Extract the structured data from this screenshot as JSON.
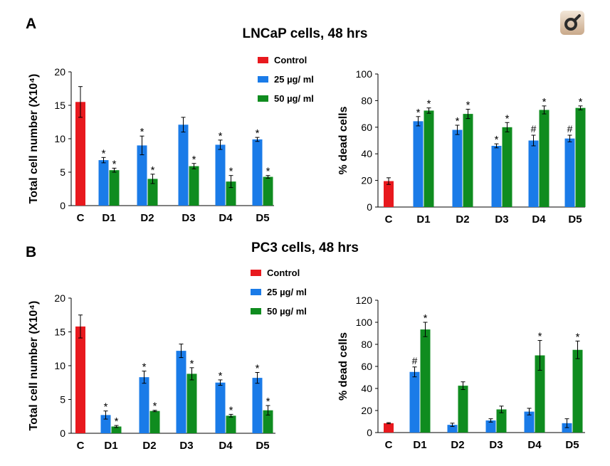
{
  "panel_a": {
    "letter": "A",
    "title": "LNCaP cells, 48 hrs"
  },
  "panel_b": {
    "letter": "B",
    "title": "PC3 cells, 48 hrs"
  },
  "legend": {
    "control": {
      "label": "Control",
      "color": "#e8191e"
    },
    "low": {
      "label": "25 µg/ ml",
      "color": "#1a7be8"
    },
    "high": {
      "label": "50 µg/ ml",
      "color": "#0f8c1f"
    }
  },
  "logo_icon": "journal-logo-icon",
  "chart_data": [
    {
      "id": "A-left",
      "type": "bar",
      "ylabel": "Total cell number (X10⁴)",
      "ylim": [
        0,
        20
      ],
      "yticks": [
        0,
        5,
        10,
        15,
        20
      ],
      "categories": [
        "C",
        "D1",
        "D2",
        "D3",
        "D4",
        "D5"
      ],
      "series": [
        {
          "name": "Control",
          "color": "#e8191e",
          "values": [
            15.5,
            null,
            null,
            null,
            null,
            null
          ],
          "errors": [
            2.3,
            null,
            null,
            null,
            null,
            null
          ],
          "marks": [
            "",
            "",
            "",
            "",
            "",
            ""
          ]
        },
        {
          "name": "25 µg/ ml",
          "color": "#1a7be8",
          "values": [
            null,
            6.8,
            9.0,
            12.1,
            9.1,
            9.9
          ],
          "errors": [
            null,
            0.4,
            1.4,
            1.1,
            0.7,
            0.3
          ],
          "marks": [
            "",
            "*",
            "*",
            "",
            "*",
            "*"
          ]
        },
        {
          "name": "50 µg/ ml",
          "color": "#0f8c1f",
          "values": [
            null,
            5.3,
            4.0,
            5.9,
            3.6,
            4.3
          ],
          "errors": [
            null,
            0.3,
            0.7,
            0.4,
            0.9,
            0.2
          ],
          "marks": [
            "",
            "*",
            "*",
            "*",
            "*",
            "*"
          ]
        }
      ]
    },
    {
      "id": "A-right",
      "type": "bar",
      "ylabel": "% dead cells",
      "ylim": [
        0,
        100
      ],
      "yticks": [
        0,
        20,
        40,
        60,
        80,
        100
      ],
      "categories": [
        "C",
        "D1",
        "D2",
        "D3",
        "D4",
        "D5"
      ],
      "series": [
        {
          "name": "Control",
          "color": "#e8191e",
          "values": [
            19.5,
            null,
            null,
            null,
            null,
            null
          ],
          "errors": [
            2.5,
            null,
            null,
            null,
            null,
            null
          ],
          "marks": [
            "",
            "",
            "",
            "",
            "",
            ""
          ]
        },
        {
          "name": "25 µg/ ml",
          "color": "#1a7be8",
          "values": [
            null,
            64.5,
            58.0,
            46.0,
            50.0,
            51.5
          ],
          "errors": [
            null,
            3.5,
            3.5,
            1.5,
            4.0,
            2.5
          ],
          "marks": [
            "",
            "*",
            "*",
            "*",
            "#",
            "#"
          ]
        },
        {
          "name": "50 µg/ ml",
          "color": "#0f8c1f",
          "values": [
            null,
            72.5,
            70.0,
            60.0,
            73.0,
            74.5
          ],
          "errors": [
            null,
            2.0,
            3.5,
            3.5,
            3.0,
            1.5
          ],
          "marks": [
            "",
            "*",
            "*",
            "*",
            "*",
            "*"
          ]
        }
      ]
    },
    {
      "id": "B-left",
      "type": "bar",
      "ylabel": "Total cell number (X10⁴)",
      "ylim": [
        0,
        20
      ],
      "yticks": [
        0,
        5,
        10,
        15,
        20
      ],
      "categories": [
        "C",
        "D1",
        "D2",
        "D3",
        "D4",
        "D5"
      ],
      "series": [
        {
          "name": "Control",
          "color": "#e8191e",
          "values": [
            15.8,
            null,
            null,
            null,
            null,
            null
          ],
          "errors": [
            1.7,
            null,
            null,
            null,
            null,
            null
          ],
          "marks": [
            "",
            "",
            "",
            "",
            "",
            ""
          ]
        },
        {
          "name": "25 µg/ ml",
          "color": "#1a7be8",
          "values": [
            null,
            2.7,
            8.3,
            12.2,
            7.5,
            8.2
          ],
          "errors": [
            null,
            0.6,
            0.9,
            1.0,
            0.4,
            0.8
          ],
          "marks": [
            "",
            "*",
            "*",
            "",
            "*",
            "*"
          ]
        },
        {
          "name": "50 µg/ ml",
          "color": "#0f8c1f",
          "values": [
            null,
            1.0,
            3.3,
            8.8,
            2.6,
            3.4
          ],
          "errors": [
            null,
            0.15,
            0.1,
            0.9,
            0.2,
            0.7
          ],
          "marks": [
            "",
            "*",
            "*",
            "*",
            "*",
            "*"
          ]
        }
      ]
    },
    {
      "id": "B-right",
      "type": "bar",
      "ylabel": "% dead cells",
      "ylim": [
        0,
        120
      ],
      "yticks": [
        0,
        20,
        40,
        60,
        80,
        100,
        120
      ],
      "categories": [
        "C",
        "D1",
        "D2",
        "D3",
        "D4",
        "D5"
      ],
      "series": [
        {
          "name": "Control",
          "color": "#e8191e",
          "values": [
            8.5,
            null,
            null,
            null,
            null,
            null
          ],
          "errors": [
            0.5,
            null,
            null,
            null,
            null,
            null
          ],
          "marks": [
            "",
            "",
            "",
            "",
            "",
            ""
          ]
        },
        {
          "name": "25 µg/ ml",
          "color": "#1a7be8",
          "values": [
            null,
            55.0,
            7.0,
            11.0,
            19.0,
            8.5
          ],
          "errors": [
            null,
            4.5,
            1.5,
            1.5,
            3.0,
            4.0
          ],
          "marks": [
            "",
            "#",
            "",
            "",
            "",
            ""
          ]
        },
        {
          "name": "50 µg/ ml",
          "color": "#0f8c1f",
          "values": [
            null,
            93.5,
            42.5,
            21.0,
            70.0,
            75.0
          ],
          "errors": [
            null,
            6.5,
            3.5,
            3.0,
            13.5,
            8.0
          ],
          "marks": [
            "",
            "*",
            "",
            "",
            "*",
            "*"
          ]
        }
      ]
    }
  ]
}
